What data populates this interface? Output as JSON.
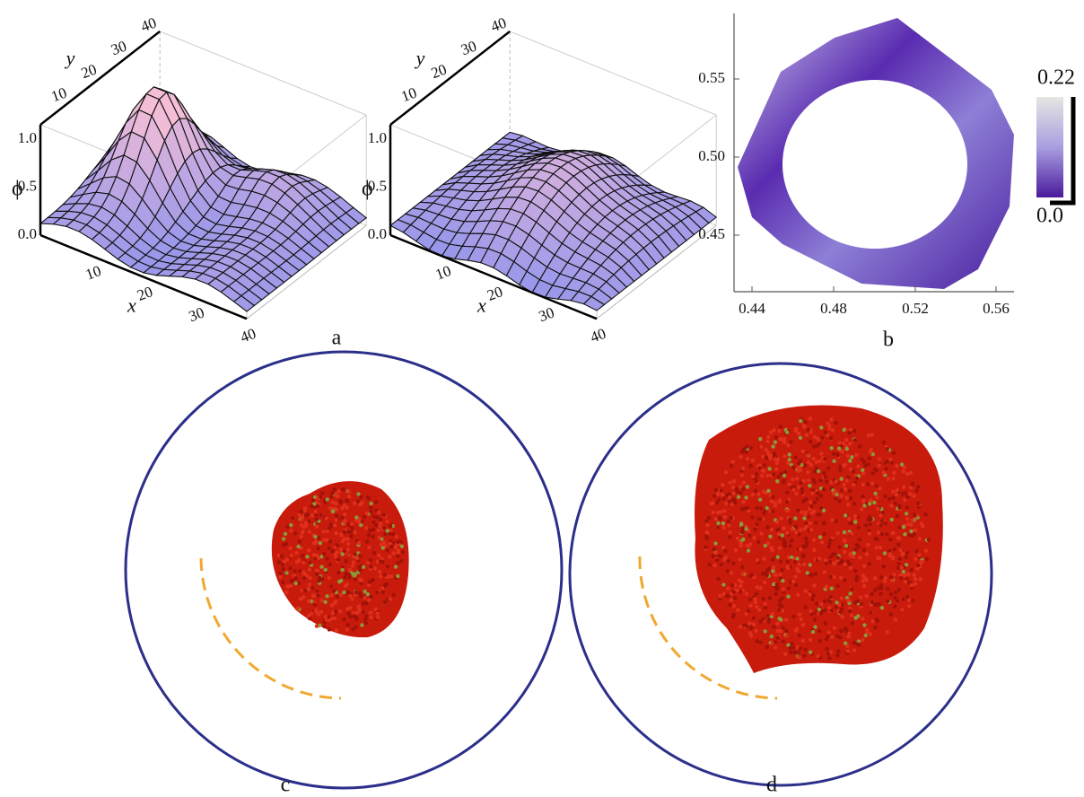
{
  "panels": {
    "a": {
      "label": "a",
      "plots": [
        {
          "x_label": "x",
          "y_label": "y",
          "z_label": "ϕ",
          "x_ticks": [
            "10",
            "20",
            "30",
            "40"
          ],
          "y_ticks": [
            "10",
            "20",
            "30",
            "40"
          ],
          "z_ticks": [
            "0.0",
            "0.5",
            "1.0"
          ]
        },
        {
          "x_label": "x",
          "y_label": "y",
          "z_label": "ϕ",
          "x_ticks": [
            "10",
            "20",
            "30",
            "40"
          ],
          "y_ticks": [
            "10",
            "20",
            "30",
            "40"
          ],
          "z_ticks": [
            "0.0",
            "0.5",
            "1.0"
          ]
        }
      ]
    },
    "b": {
      "label": "b",
      "x_ticks": [
        "0.44",
        "0.48",
        "0.52",
        "0.56"
      ],
      "y_ticks": [
        "0.45",
        "0.50",
        "0.55"
      ],
      "colorbar_ticks": [
        "0.22",
        "0.0"
      ]
    },
    "c": {
      "label": "c"
    },
    "d": {
      "label": "d"
    }
  }
}
